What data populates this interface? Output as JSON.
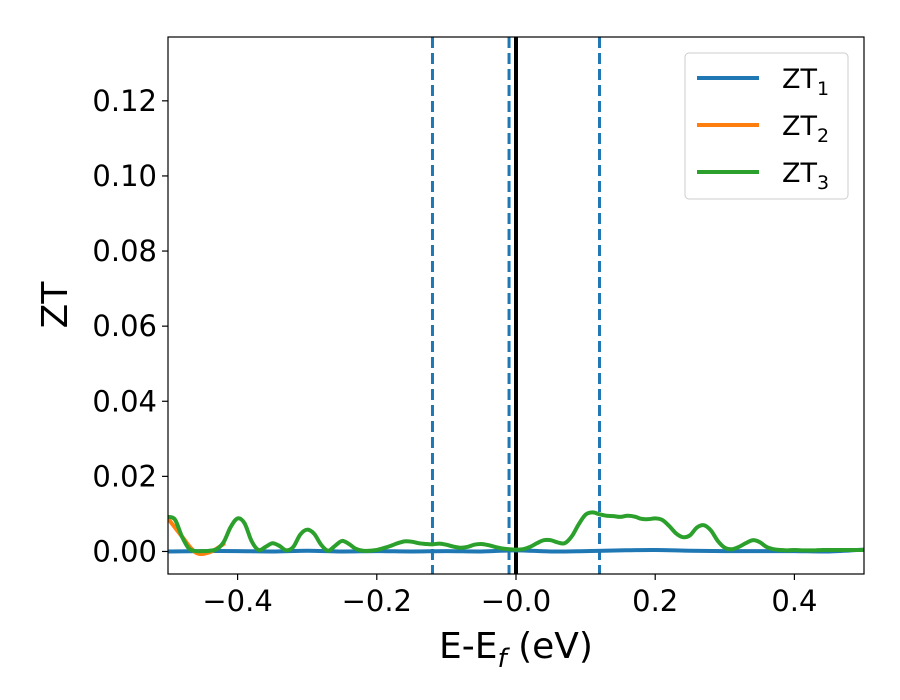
{
  "chart_data": {
    "type": "line",
    "xlabel": {
      "main": "E-E",
      "sub": "f",
      "tail": " (eV)"
    },
    "ylabel": "ZT",
    "xlim": [
      -0.5,
      0.5
    ],
    "ylim": [
      -0.006,
      0.137
    ],
    "xticks": [
      -0.4,
      -0.2,
      0.0,
      0.2,
      0.4
    ],
    "xtick_labels": [
      "−0.4",
      "−0.2",
      "−0.0",
      "0.2",
      "0.4"
    ],
    "yticks": [
      0.0,
      0.02,
      0.04,
      0.06,
      0.08,
      0.1,
      0.12
    ],
    "ytick_labels": [
      "0.00",
      "0.02",
      "0.04",
      "0.06",
      "0.08",
      "0.10",
      "0.12"
    ],
    "grid": false,
    "legend_position": "top-right",
    "series": [
      {
        "name": "ZT",
        "sub": "1",
        "color": "#1f77b4",
        "x": [
          -0.5,
          -0.45,
          -0.4,
          -0.35,
          -0.3,
          -0.25,
          -0.2,
          -0.15,
          -0.1,
          -0.05,
          0.0,
          0.05,
          0.1,
          0.15,
          0.2,
          0.25,
          0.3,
          0.35,
          0.4,
          0.45,
          0.5
        ],
        "y": [
          0.0,
          0.0001,
          0.0001,
          0.0,
          0.0002,
          0.0,
          0.0001,
          0.0,
          0.0001,
          0.0,
          0.0003,
          0.0,
          0.0001,
          0.0003,
          0.0004,
          0.0002,
          0.0001,
          0.0001,
          0.0001,
          0.0,
          0.0005
        ]
      },
      {
        "name": "ZT",
        "sub": "2",
        "color": "#ff7f0e",
        "x": [
          -0.5,
          -0.48,
          -0.46,
          -0.44,
          -0.42
        ],
        "y": [
          0.0088,
          0.004,
          -0.0003,
          -0.0002,
          0.002
        ]
      },
      {
        "name": "ZT",
        "sub": "3",
        "color": "#2ca02c",
        "x": [
          -0.5,
          -0.49,
          -0.48,
          -0.47,
          -0.46,
          -0.45,
          -0.44,
          -0.43,
          -0.42,
          -0.41,
          -0.4,
          -0.39,
          -0.38,
          -0.37,
          -0.36,
          -0.35,
          -0.34,
          -0.33,
          -0.32,
          -0.31,
          -0.3,
          -0.29,
          -0.28,
          -0.27,
          -0.26,
          -0.25,
          -0.24,
          -0.23,
          -0.22,
          -0.21,
          -0.2,
          -0.19,
          -0.18,
          -0.17,
          -0.16,
          -0.15,
          -0.14,
          -0.13,
          -0.12,
          -0.11,
          -0.1,
          -0.09,
          -0.08,
          -0.07,
          -0.06,
          -0.05,
          -0.04,
          -0.03,
          -0.02,
          -0.01,
          0.0,
          0.01,
          0.02,
          0.03,
          0.04,
          0.05,
          0.06,
          0.07,
          0.08,
          0.09,
          0.1,
          0.11,
          0.12,
          0.13,
          0.14,
          0.15,
          0.16,
          0.17,
          0.18,
          0.19,
          0.2,
          0.21,
          0.22,
          0.23,
          0.24,
          0.25,
          0.26,
          0.27,
          0.28,
          0.29,
          0.3,
          0.31,
          0.32,
          0.33,
          0.34,
          0.35,
          0.36,
          0.37,
          0.38,
          0.39,
          0.4,
          0.41,
          0.42,
          0.43,
          0.44,
          0.45,
          0.46,
          0.47,
          0.48,
          0.49,
          0.5
        ],
        "y": [
          0.0092,
          0.0085,
          0.004,
          0.0008,
          0.0001,
          0.0001,
          0.0002,
          0.0006,
          0.0025,
          0.0065,
          0.0088,
          0.0075,
          0.0028,
          0.0004,
          0.0012,
          0.0022,
          0.0015,
          0.0003,
          0.0012,
          0.0045,
          0.0058,
          0.0047,
          0.0018,
          0.0002,
          0.0015,
          0.0028,
          0.002,
          0.0007,
          0.0002,
          0.0002,
          0.0004,
          0.0009,
          0.0015,
          0.0022,
          0.0027,
          0.0026,
          0.0022,
          0.002,
          0.0019,
          0.0021,
          0.0018,
          0.0013,
          0.001,
          0.0012,
          0.0018,
          0.002,
          0.0017,
          0.0012,
          0.0008,
          0.0006,
          0.0005,
          0.0006,
          0.0012,
          0.0022,
          0.003,
          0.003,
          0.0024,
          0.0022,
          0.004,
          0.0072,
          0.0098,
          0.0104,
          0.0099,
          0.0095,
          0.0094,
          0.0092,
          0.0095,
          0.0093,
          0.0087,
          0.0086,
          0.0088,
          0.0084,
          0.0068,
          0.0048,
          0.0038,
          0.0043,
          0.0064,
          0.007,
          0.0056,
          0.0028,
          0.001,
          0.0006,
          0.0012,
          0.0022,
          0.003,
          0.0025,
          0.0012,
          0.0006,
          0.0004,
          0.0003,
          0.0004,
          0.0003,
          0.0003,
          0.0003,
          0.0004,
          0.0004,
          0.0004,
          0.0004,
          0.0004,
          0.0004,
          0.0004
        ]
      }
    ],
    "vlines": [
      {
        "x": -0.12,
        "style": "dashed",
        "color": "#1f77b4"
      },
      {
        "x": -0.01,
        "style": "dashed",
        "color": "#1f77b4"
      },
      {
        "x": 0.12,
        "style": "dashed",
        "color": "#1f77b4"
      },
      {
        "x": 0.0,
        "style": "solid",
        "color": "#000000"
      }
    ]
  }
}
